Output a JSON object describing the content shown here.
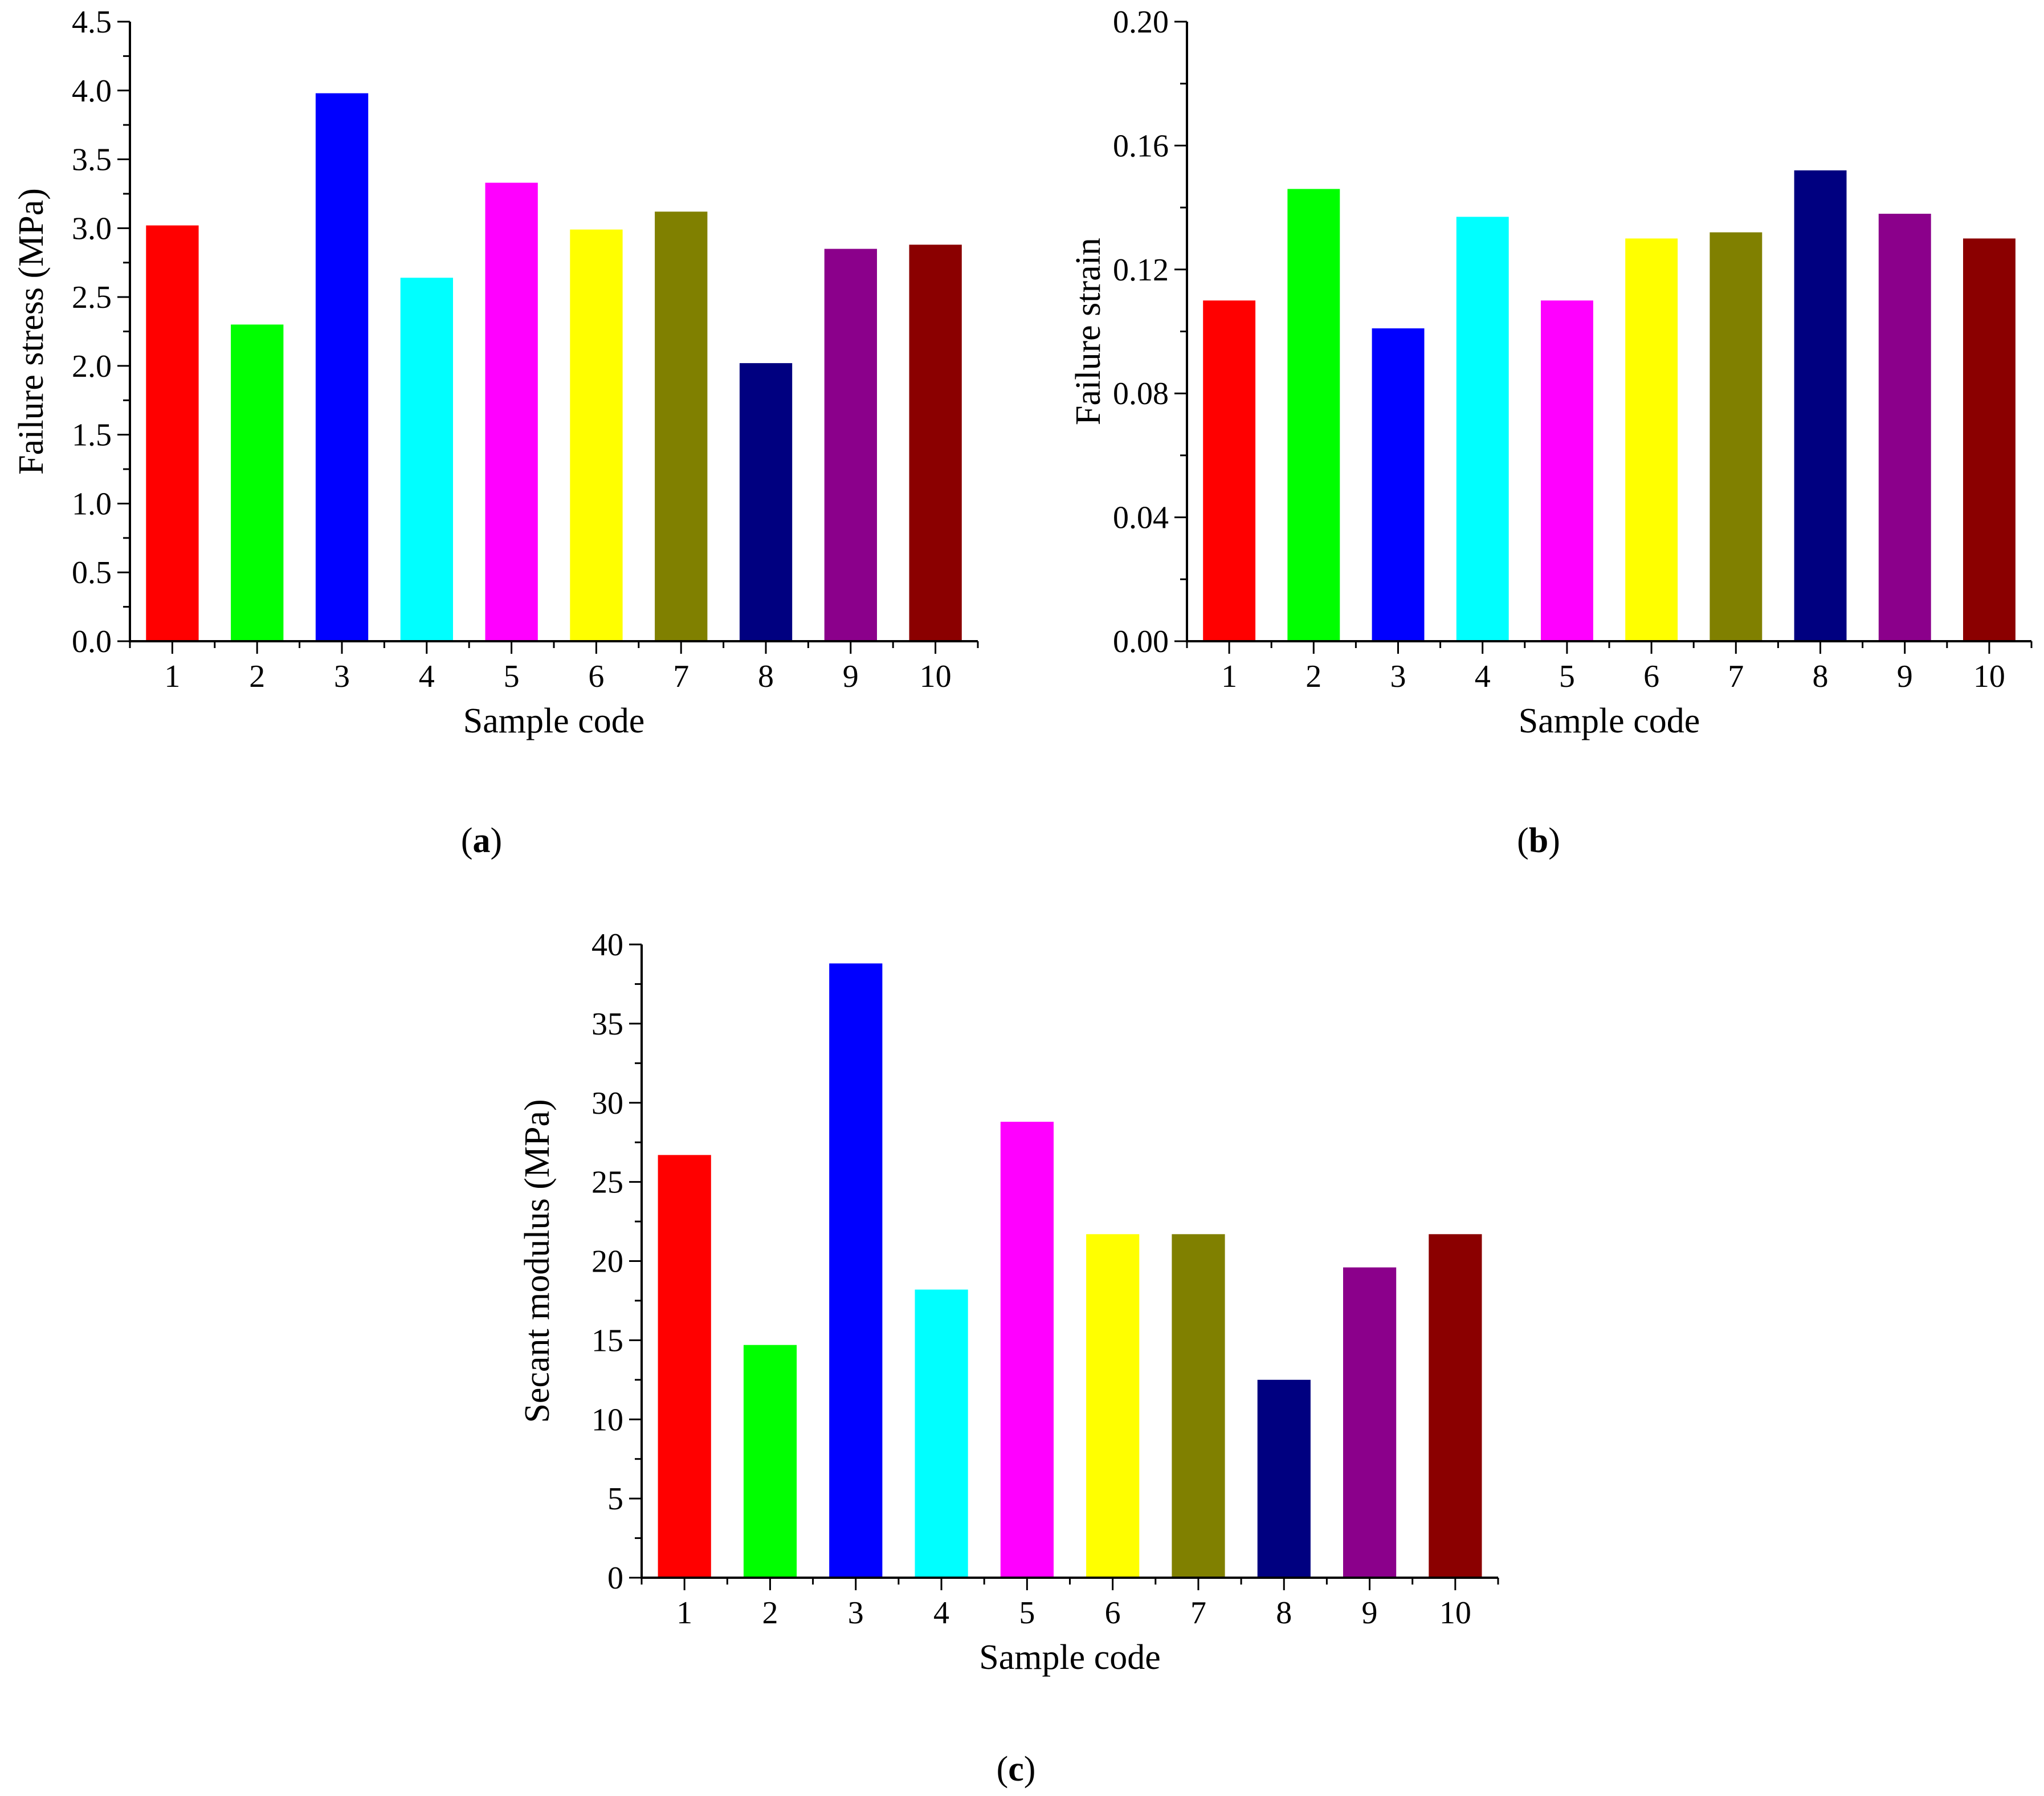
{
  "figure": {
    "panels": [
      "a",
      "b",
      "c"
    ]
  },
  "chart_data": [
    {
      "id": "a",
      "type": "bar",
      "panel_label": "a",
      "categories": [
        "1",
        "2",
        "3",
        "4",
        "5",
        "6",
        "7",
        "8",
        "9",
        "10"
      ],
      "values": [
        3.02,
        2.3,
        3.98,
        2.64,
        3.33,
        2.99,
        3.12,
        2.02,
        2.85,
        2.88
      ],
      "colors": [
        "#ff0000",
        "#00ff00",
        "#0000ff",
        "#00ffff",
        "#ff00ff",
        "#ffff00",
        "#808000",
        "#000080",
        "#8b008b",
        "#8b0000"
      ],
      "xlabel": "Sample code",
      "ylabel": "Failure stress (MPa)",
      "ylim": [
        0,
        4.5
      ],
      "yticks": [
        "0.0",
        "0.5",
        "1.0",
        "1.5",
        "2.0",
        "2.5",
        "3.0",
        "3.5",
        "4.0",
        "4.5"
      ],
      "grid": false
    },
    {
      "id": "b",
      "type": "bar",
      "panel_label": "b",
      "categories": [
        "1",
        "2",
        "3",
        "4",
        "5",
        "6",
        "7",
        "8",
        "9",
        "10"
      ],
      "values": [
        0.11,
        0.146,
        0.101,
        0.137,
        0.11,
        0.13,
        0.132,
        0.152,
        0.138,
        0.13
      ],
      "colors": [
        "#ff0000",
        "#00ff00",
        "#0000ff",
        "#00ffff",
        "#ff00ff",
        "#ffff00",
        "#808000",
        "#000080",
        "#8b008b",
        "#8b0000"
      ],
      "xlabel": "Sample code",
      "ylabel": "Failure strain",
      "ylim": [
        0,
        0.2
      ],
      "yticks": [
        "0.00",
        "0.04",
        "0.08",
        "0.12",
        "0.16",
        "0.20"
      ],
      "grid": false
    },
    {
      "id": "c",
      "type": "bar",
      "panel_label": "c",
      "categories": [
        "1",
        "2",
        "3",
        "4",
        "5",
        "6",
        "7",
        "8",
        "9",
        "10"
      ],
      "values": [
        26.7,
        14.7,
        38.8,
        18.2,
        28.8,
        21.7,
        21.7,
        12.5,
        19.6,
        21.7
      ],
      "colors": [
        "#ff0000",
        "#00ff00",
        "#0000ff",
        "#00ffff",
        "#ff00ff",
        "#ffff00",
        "#808000",
        "#000080",
        "#8b008b",
        "#8b0000"
      ],
      "xlabel": "Sample code",
      "ylabel": "Secant modulus (MPa)",
      "ylim": [
        0,
        40
      ],
      "yticks": [
        "0",
        "5",
        "10",
        "15",
        "20",
        "25",
        "30",
        "35",
        "40"
      ],
      "grid": false
    }
  ]
}
